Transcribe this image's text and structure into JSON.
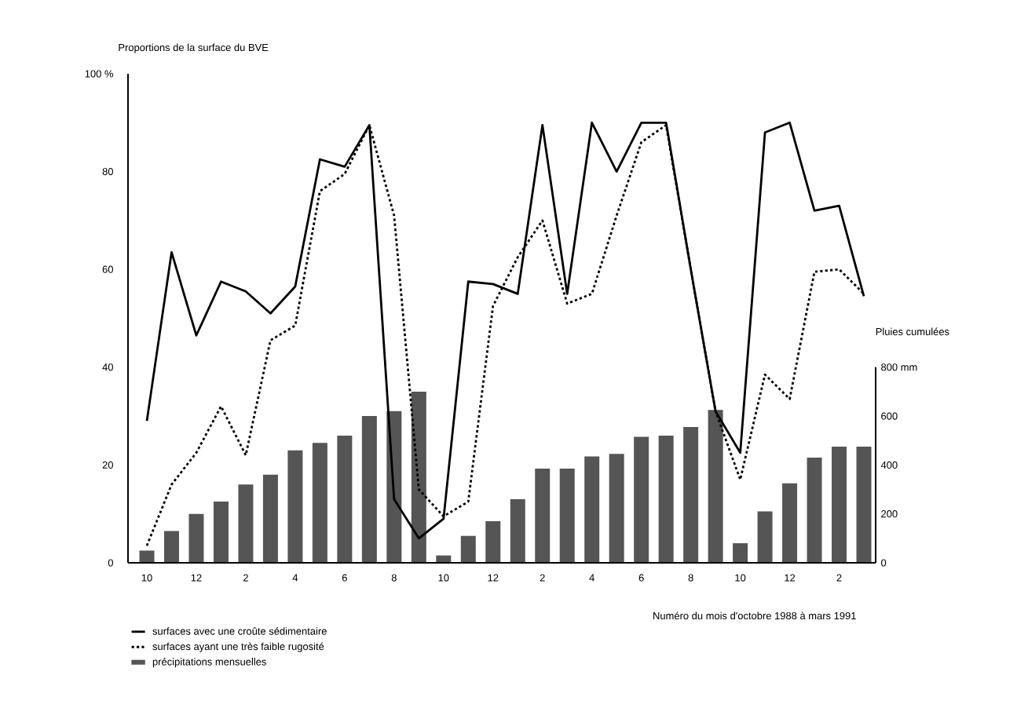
{
  "chart_data": {
    "type": "line",
    "ylabel": "Proportions de la surface du BVE",
    "y2label": "Pluies cumulées",
    "xlabel": "Numéro du mois d'octobre 1988 à mars 1991",
    "categories": [
      "10",
      null,
      "12",
      null,
      "2",
      null,
      "4",
      null,
      "6",
      null,
      "8",
      null,
      "10",
      null,
      "12",
      null,
      "2",
      null,
      "4",
      null,
      "6",
      null,
      "8",
      null,
      "10",
      null,
      "12",
      null,
      "2",
      null
    ],
    "ylim": [
      0,
      100
    ],
    "yticks": [
      0,
      20,
      40,
      60,
      80,
      {
        "value": 100,
        "label": "100 %"
      }
    ],
    "y2lim": [
      0,
      2000
    ],
    "y2ticks": [
      0,
      200,
      400,
      600,
      {
        "value": 800,
        "label": "800 mm"
      }
    ],
    "legend": "bottom left",
    "series": [
      {
        "name": "surfaces avec une croûte sédimentaire",
        "line_style": "solid",
        "color": "#000000",
        "values": [
          29,
          63.5,
          46.5,
          57.5,
          55.5,
          51,
          56.5,
          82.5,
          81,
          89.5,
          13,
          5,
          9,
          57.5,
          57,
          55,
          89.5,
          55,
          90,
          80,
          90,
          90,
          60,
          31,
          22.5,
          88,
          90,
          72,
          73,
          54.5
        ]
      },
      {
        "name": "surfaces ayant une très faible rugosité",
        "line_style": "dotted",
        "color": "#000000",
        "values": [
          3.5,
          16,
          22.5,
          32,
          22,
          45.5,
          48.5,
          76,
          79.5,
          89.5,
          71,
          15,
          9.5,
          12.5,
          52.5,
          62.5,
          70,
          53,
          55,
          71,
          86,
          89.5,
          60,
          31,
          17,
          38.5,
          33.5,
          59.5,
          60,
          55
        ]
      },
      {
        "name": "précipitations mensuelles",
        "type": "bar",
        "axis": "y2",
        "color": "#555555",
        "values": [
          50,
          130,
          200,
          250,
          320,
          360,
          460,
          490,
          520,
          600,
          620,
          700,
          30,
          110,
          170,
          260,
          385,
          385,
          435,
          445,
          515,
          520,
          555,
          625,
          80,
          210,
          325,
          430,
          475,
          475
        ]
      }
    ]
  }
}
